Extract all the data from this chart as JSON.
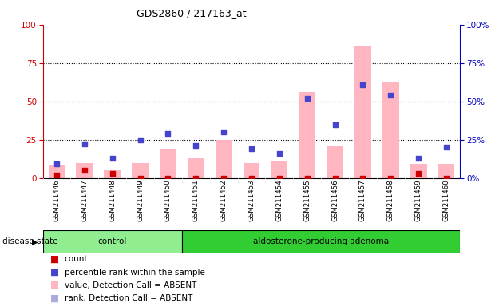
{
  "title": "GDS2860 / 217163_at",
  "samples": [
    "GSM211446",
    "GSM211447",
    "GSM211448",
    "GSM211449",
    "GSM211450",
    "GSM211451",
    "GSM211452",
    "GSM211453",
    "GSM211454",
    "GSM211455",
    "GSM211456",
    "GSM211457",
    "GSM211458",
    "GSM211459",
    "GSM211460"
  ],
  "count_values": [
    2,
    5,
    3,
    0,
    0,
    0,
    0,
    0,
    0,
    0,
    0,
    0,
    0,
    3,
    0
  ],
  "pct_rank_values": [
    9,
    22,
    13,
    25,
    29,
    21,
    30,
    19,
    16,
    52,
    35,
    61,
    54,
    13,
    20
  ],
  "bar_value_absent": [
    8,
    10,
    5,
    10,
    19,
    13,
    25,
    10,
    11,
    56,
    21,
    86,
    63,
    9,
    9
  ],
  "groups": [
    {
      "label": "control",
      "start": 0,
      "end": 5,
      "color": "#90EE90"
    },
    {
      "label": "aldosterone-producing adenoma",
      "start": 5,
      "end": 15,
      "color": "#32CD32"
    }
  ],
  "disease_state_label": "disease state",
  "ylim": [
    0,
    100
  ],
  "yticks": [
    0,
    25,
    50,
    75,
    100
  ],
  "grid_lines": [
    25,
    50,
    75
  ],
  "left_axis_color": "#CC0000",
  "right_axis_color": "#0000BB",
  "bar_absent_color": "#FFB6C1",
  "rank_absent_color": "#AAAADD",
  "count_color": "#CC0000",
  "pct_rank_color": "#4444CC",
  "bg_color": "#C8C8C8",
  "legend_items": [
    {
      "label": "count",
      "color": "#CC0000"
    },
    {
      "label": "percentile rank within the sample",
      "color": "#4444CC"
    },
    {
      "label": "value, Detection Call = ABSENT",
      "color": "#FFB6C1"
    },
    {
      "label": "rank, Detection Call = ABSENT",
      "color": "#AAAADD"
    }
  ]
}
